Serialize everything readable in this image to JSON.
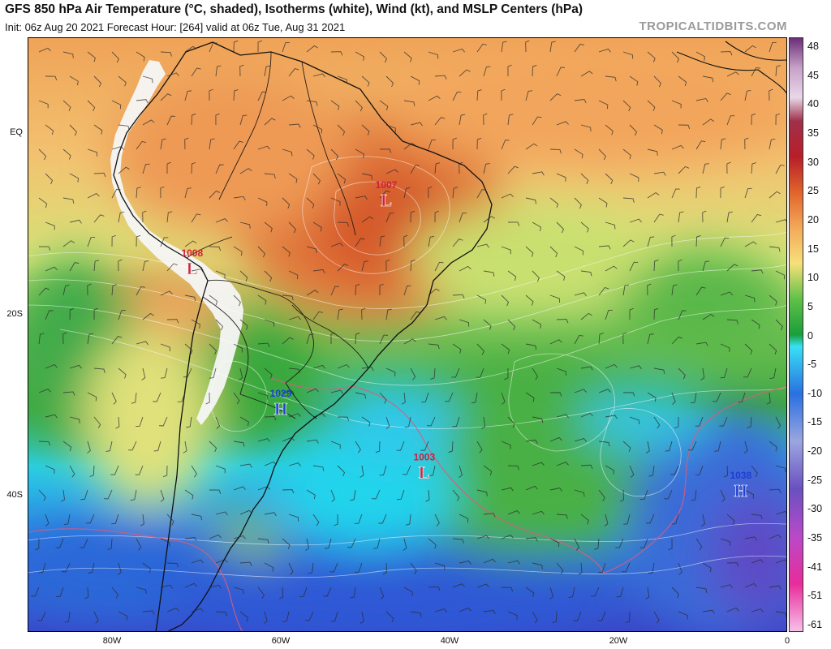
{
  "header": {
    "title": "GFS 850 hPa Air Temperature (°C, shaded), Isotherms (white), Wind (kt), and MSLP Centers (hPa)",
    "subtitle": "Init: 06z Aug 20 2021   Forecast Hour: [264]   valid at 06z Tue, Aug 31 2021",
    "watermark": "TROPICALTIDBITS.COM"
  },
  "axes": {
    "latitude_labels": [
      {
        "text": "EQ",
        "lat": 0
      },
      {
        "text": "20S",
        "lat": -20
      },
      {
        "text": "40S",
        "lat": -40
      }
    ],
    "longitude_labels": [
      {
        "text": "80W",
        "lon": -80
      },
      {
        "text": "60W",
        "lon": -60
      },
      {
        "text": "40W",
        "lon": -40
      },
      {
        "text": "20W",
        "lon": -20
      },
      {
        "text": "0",
        "lon": 0
      }
    ]
  },
  "colorbar": {
    "ticks": [
      "48",
      "45",
      "40",
      "35",
      "30",
      "25",
      "20",
      "15",
      "10",
      "5",
      "0",
      "-5",
      "-10",
      "-15",
      "-20",
      "-25",
      "-30",
      "-35",
      "-41",
      "-51",
      "-61"
    ]
  },
  "pressure_centers": [
    {
      "type": "L",
      "value": "1007",
      "lon": -47.5,
      "lat": -7.5,
      "color": "#d0203c"
    },
    {
      "type": "L",
      "value": "1008",
      "lon": -70.5,
      "lat": -15.0,
      "color": "#d0203c"
    },
    {
      "type": "H",
      "value": "1029",
      "lon": -60.0,
      "lat": -30.5,
      "color": "#1e3fd0"
    },
    {
      "type": "L",
      "value": "1003",
      "lon": -43.0,
      "lat": -37.5,
      "color": "#d0203c"
    },
    {
      "type": "H",
      "value": "1038",
      "lon": -5.5,
      "lat": -39.5,
      "color": "#1e3fd0"
    }
  ]
}
